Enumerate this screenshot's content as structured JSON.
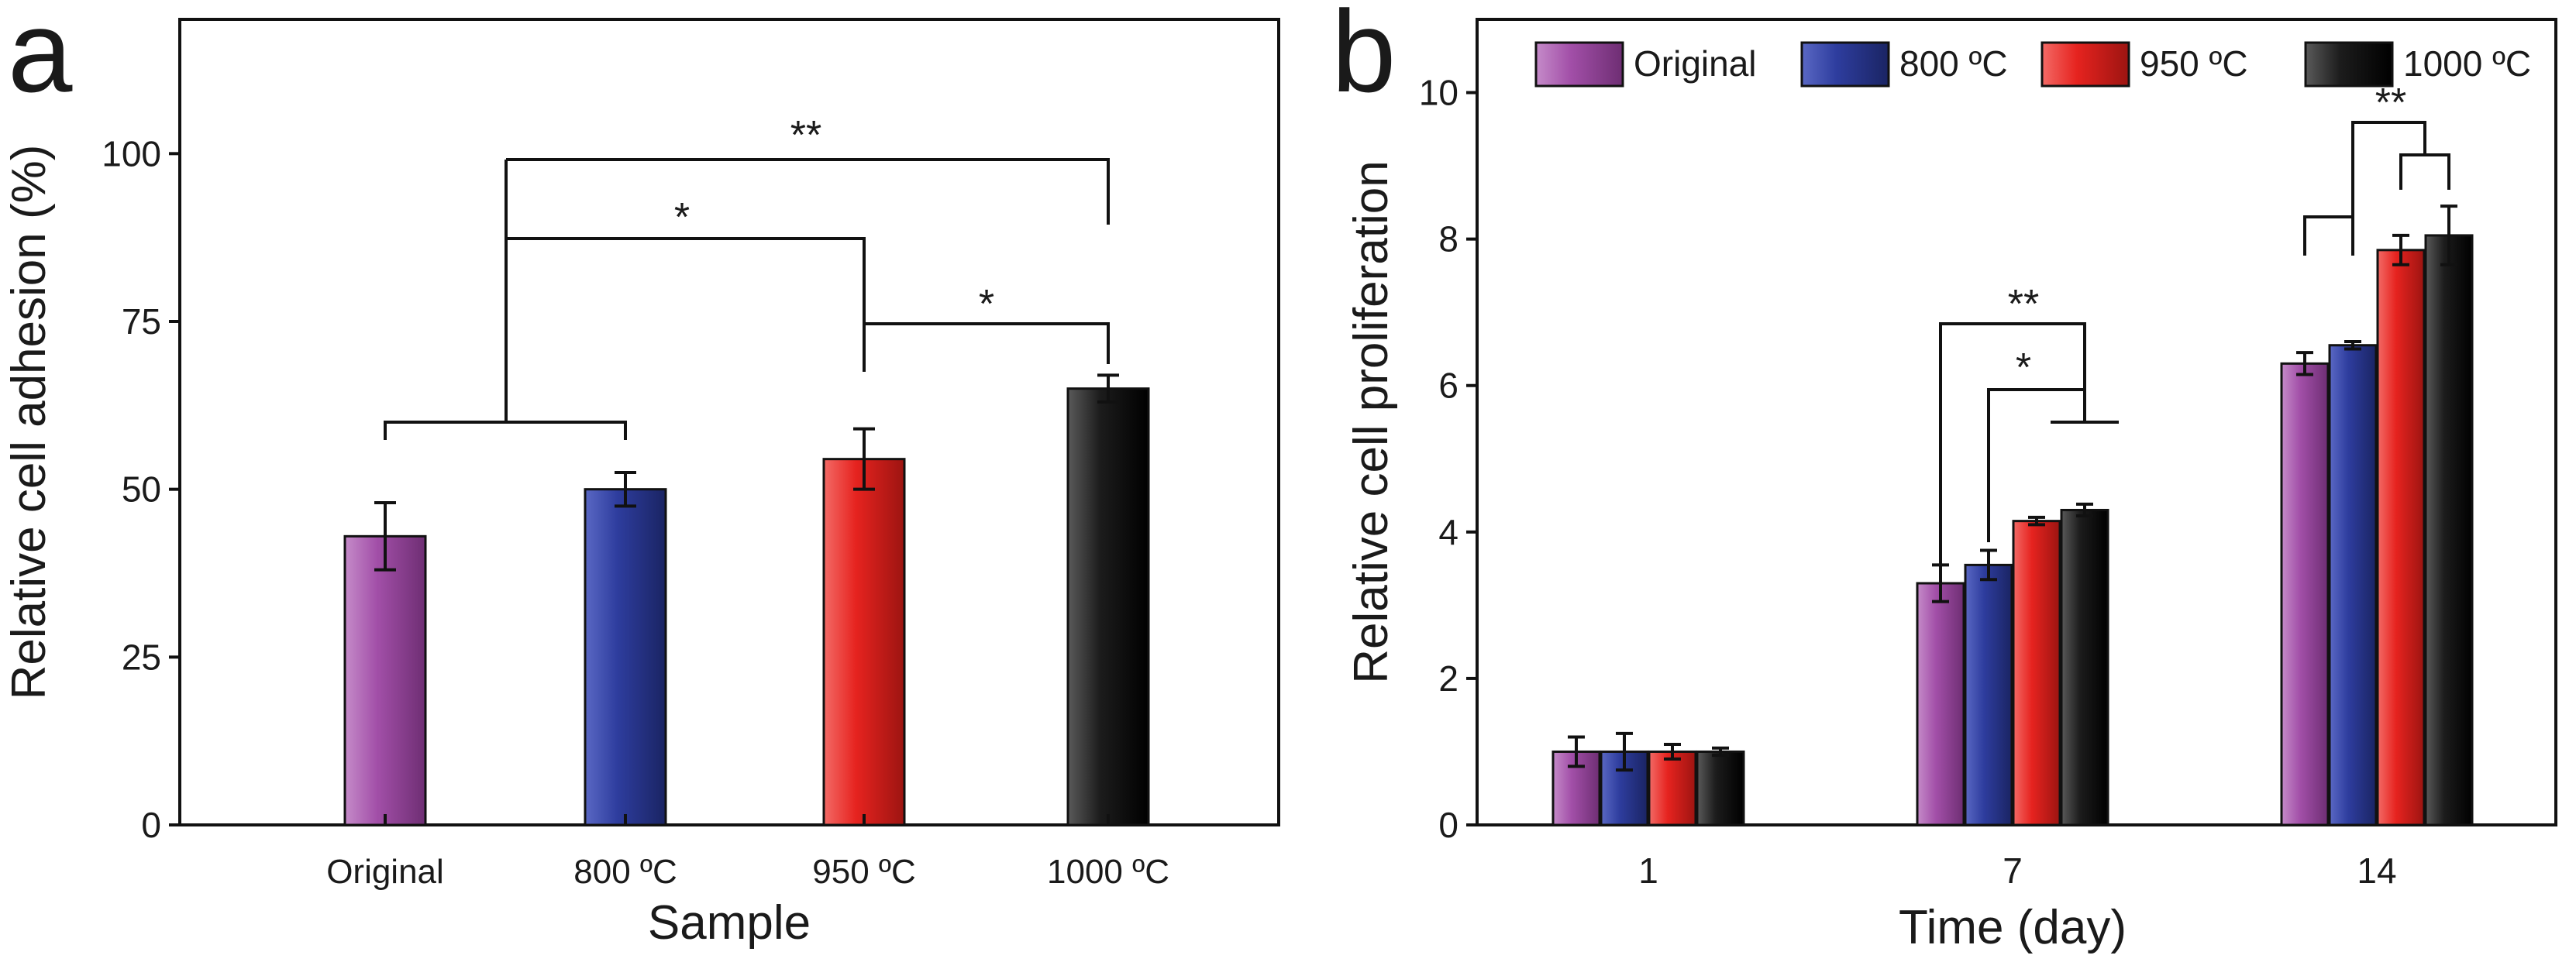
{
  "colors": {
    "Original": "#a24fa8",
    "800C": "#2e3d9e",
    "950C": "#e6231f",
    "1000C": "#1c1c1c"
  },
  "chart_data": [
    {
      "panel": "a",
      "type": "bar",
      "title": "",
      "xlabel": "Sample",
      "ylabel": "Relative cell adhesion (%)",
      "ylim": [
        0,
        120
      ],
      "yticks": [
        0,
        25,
        50,
        75,
        100
      ],
      "categories": [
        "Original",
        "800 ºC",
        "950 ºC",
        "1000 ºC"
      ],
      "series_keys": [
        "Original",
        "800C",
        "950C",
        "1000C"
      ],
      "values": [
        43,
        50,
        54.5,
        65
      ],
      "errors": [
        5,
        2.5,
        4.5,
        2
      ],
      "significance": [
        {
          "label": "**"
        },
        {
          "label": "*"
        },
        {
          "label": "*"
        }
      ]
    },
    {
      "panel": "b",
      "type": "bar",
      "title": "",
      "xlabel": "Time (day)",
      "ylabel": "Relative cell proliferation",
      "ylim": [
        0,
        11
      ],
      "yticks": [
        0,
        2,
        4,
        6,
        8,
        10
      ],
      "categories": [
        "1",
        "7",
        "14"
      ],
      "legend": [
        "Original",
        "800 ºC",
        "950 ºC",
        "1000 ºC"
      ],
      "legend_position": "top",
      "series": [
        {
          "name": "Original",
          "key": "Original",
          "values": [
            1.0,
            3.3,
            6.3
          ],
          "errors": [
            0.2,
            0.25,
            0.15
          ]
        },
        {
          "name": "800 ºC",
          "key": "800C",
          "values": [
            1.0,
            3.55,
            6.55
          ],
          "errors": [
            0.25,
            0.2,
            0.05
          ]
        },
        {
          "name": "950 ºC",
          "key": "950C",
          "values": [
            1.0,
            4.15,
            7.85
          ],
          "errors": [
            0.1,
            0.05,
            0.2
          ]
        },
        {
          "name": "1000 ºC",
          "key": "1000C",
          "values": [
            1.0,
            4.3,
            8.05
          ],
          "errors": [
            0.05,
            0.08,
            0.4
          ]
        }
      ],
      "significance": [
        {
          "label": "**"
        },
        {
          "label": "*"
        },
        {
          "label": "**"
        }
      ]
    }
  ]
}
